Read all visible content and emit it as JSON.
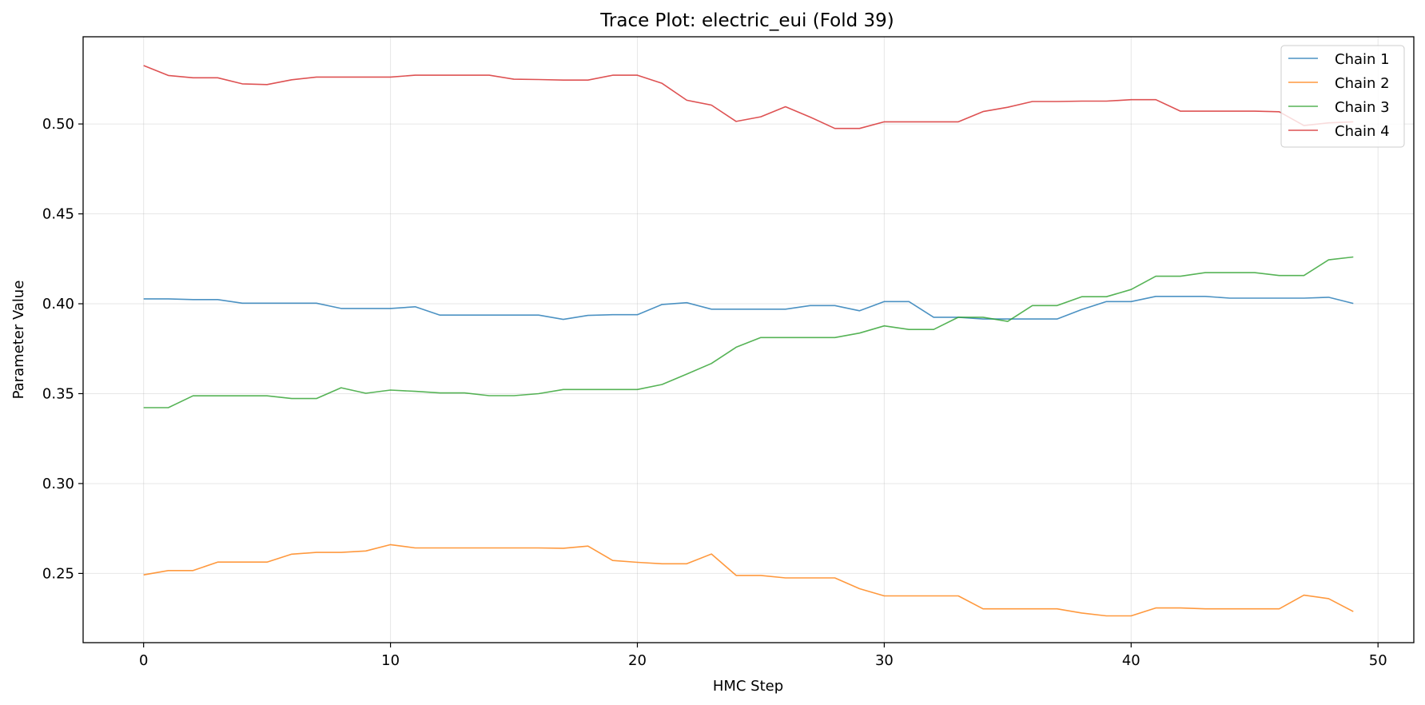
{
  "chart_data": {
    "type": "line",
    "title": "Trace Plot: electric_eui (Fold 39)",
    "xlabel": "HMC Step",
    "ylabel": "Parameter Value",
    "xlim": [
      -2.45,
      51.45
    ],
    "ylim": [
      0.2115,
      0.5485
    ],
    "xticks": [
      0,
      10,
      20,
      30,
      40,
      50
    ],
    "xtick_labels": [
      "0",
      "10",
      "20",
      "30",
      "40",
      "50"
    ],
    "yticks": [
      0.25,
      0.3,
      0.35,
      0.4,
      0.45,
      0.5
    ],
    "ytick_labels": [
      "0.25",
      "0.30",
      "0.35",
      "0.40",
      "0.45",
      "0.50"
    ],
    "grid": true,
    "legend_position": "top-right",
    "x": [
      0,
      1,
      2,
      3,
      4,
      5,
      6,
      7,
      8,
      9,
      10,
      11,
      12,
      13,
      14,
      15,
      16,
      17,
      18,
      19,
      20,
      21,
      22,
      23,
      24,
      25,
      26,
      27,
      28,
      29,
      30,
      31,
      32,
      33,
      34,
      35,
      36,
      37,
      38,
      39,
      40,
      41,
      42,
      43,
      44,
      45,
      46,
      47,
      48,
      49
    ],
    "series": [
      {
        "name": "Chain 1",
        "color": "#1f77b4",
        "values": [
          0.4027,
          0.4027,
          0.4023,
          0.4023,
          0.4003,
          0.4003,
          0.4003,
          0.4003,
          0.3974,
          0.3974,
          0.3974,
          0.3983,
          0.3937,
          0.3937,
          0.3937,
          0.3937,
          0.3937,
          0.3913,
          0.3935,
          0.3939,
          0.3939,
          0.3996,
          0.4006,
          0.397,
          0.397,
          0.397,
          0.397,
          0.399,
          0.399,
          0.3961,
          0.4012,
          0.4012,
          0.3925,
          0.3925,
          0.3915,
          0.3915,
          0.3915,
          0.3915,
          0.3968,
          0.4012,
          0.4012,
          0.4041,
          0.4041,
          0.4041,
          0.4031,
          0.4031,
          0.4031,
          0.4031,
          0.4036,
          0.4002
        ]
      },
      {
        "name": "Chain 2",
        "color": "#ff7f0e",
        "values": [
          0.2492,
          0.2516,
          0.2516,
          0.2563,
          0.2563,
          0.2563,
          0.2607,
          0.2617,
          0.2617,
          0.2625,
          0.266,
          0.2642,
          0.2642,
          0.2642,
          0.2642,
          0.2642,
          0.2642,
          0.264,
          0.2652,
          0.2572,
          0.2562,
          0.2554,
          0.2554,
          0.2608,
          0.2489,
          0.2489,
          0.2475,
          0.2475,
          0.2475,
          0.2415,
          0.2375,
          0.2375,
          0.2375,
          0.2375,
          0.2303,
          0.2303,
          0.2303,
          0.2303,
          0.228,
          0.2264,
          0.2264,
          0.2308,
          0.2308,
          0.2303,
          0.2303,
          0.2303,
          0.2303,
          0.2379,
          0.236,
          0.2288
        ]
      },
      {
        "name": "Chain 3",
        "color": "#2ca02c",
        "values": [
          0.3422,
          0.3422,
          0.3488,
          0.3488,
          0.3488,
          0.3488,
          0.3473,
          0.3473,
          0.3533,
          0.3502,
          0.352,
          0.3513,
          0.3504,
          0.3504,
          0.3489,
          0.3489,
          0.35,
          0.3523,
          0.3523,
          0.3523,
          0.3523,
          0.3551,
          0.3609,
          0.3668,
          0.3758,
          0.3812,
          0.3812,
          0.3812,
          0.3812,
          0.3837,
          0.3877,
          0.3857,
          0.3857,
          0.3925,
          0.3925,
          0.3902,
          0.399,
          0.399,
          0.4039,
          0.4039,
          0.4079,
          0.4153,
          0.4153,
          0.4173,
          0.4173,
          0.4173,
          0.4157,
          0.4157,
          0.4244,
          0.426
        ]
      },
      {
        "name": "Chain 4",
        "color": "#d62728",
        "values": [
          0.5325,
          0.527,
          0.5257,
          0.5257,
          0.5223,
          0.5219,
          0.5246,
          0.5261,
          0.5261,
          0.5261,
          0.5261,
          0.5271,
          0.5271,
          0.5271,
          0.5271,
          0.5249,
          0.5247,
          0.5244,
          0.5244,
          0.5271,
          0.5271,
          0.5226,
          0.5132,
          0.5105,
          0.5014,
          0.504,
          0.5096,
          0.5038,
          0.4975,
          0.4975,
          0.5012,
          0.5012,
          0.5012,
          0.5012,
          0.5069,
          0.5093,
          0.5125,
          0.5125,
          0.5127,
          0.5127,
          0.5135,
          0.5135,
          0.5071,
          0.5071,
          0.5071,
          0.5071,
          0.5068,
          0.4991,
          0.5006,
          0.5012
        ]
      }
    ]
  }
}
